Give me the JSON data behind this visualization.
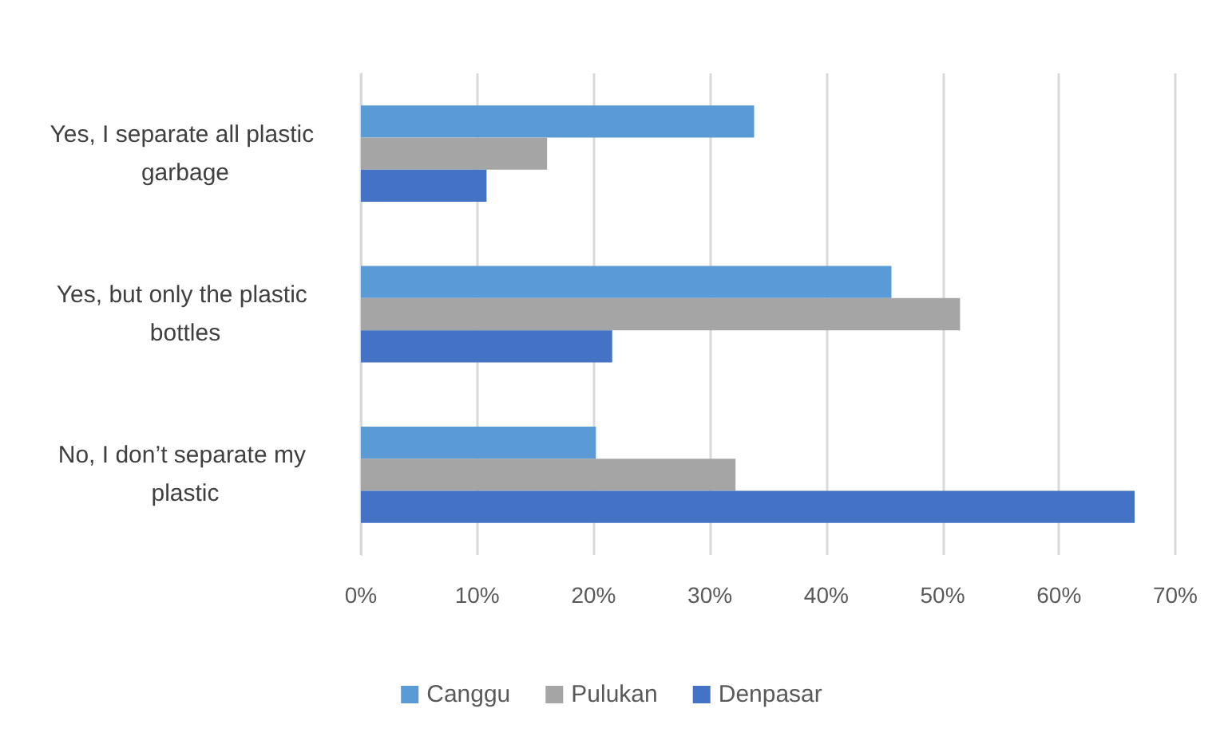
{
  "chart_data": {
    "type": "bar",
    "orientation": "horizontal",
    "categories": [
      "Yes, I separate all plastic garbage",
      "Yes, but only the plastic bottles",
      "No, I don’t separate my plastic"
    ],
    "series": [
      {
        "name": "Canggu",
        "color": "#5b9bd5",
        "values": [
          33.8,
          45.6,
          20.2
        ]
      },
      {
        "name": "Pulukan",
        "color": "#a5a5a5",
        "values": [
          16.0,
          51.5,
          32.2
        ]
      },
      {
        "name": "Denpasar",
        "color": "#4472c4",
        "values": [
          10.8,
          21.6,
          66.5
        ]
      }
    ],
    "xlim": [
      0,
      70
    ],
    "xticks": [
      {
        "value": 0,
        "label": "0%"
      },
      {
        "value": 10,
        "label": "10%"
      },
      {
        "value": 20,
        "label": "20%"
      },
      {
        "value": 30,
        "label": "30%"
      },
      {
        "value": 40,
        "label": "40%"
      },
      {
        "value": 50,
        "label": "50%"
      },
      {
        "value": 60,
        "label": "60%"
      },
      {
        "value": 70,
        "label": "70%"
      }
    ],
    "grid": "x",
    "legend": "bottom"
  }
}
